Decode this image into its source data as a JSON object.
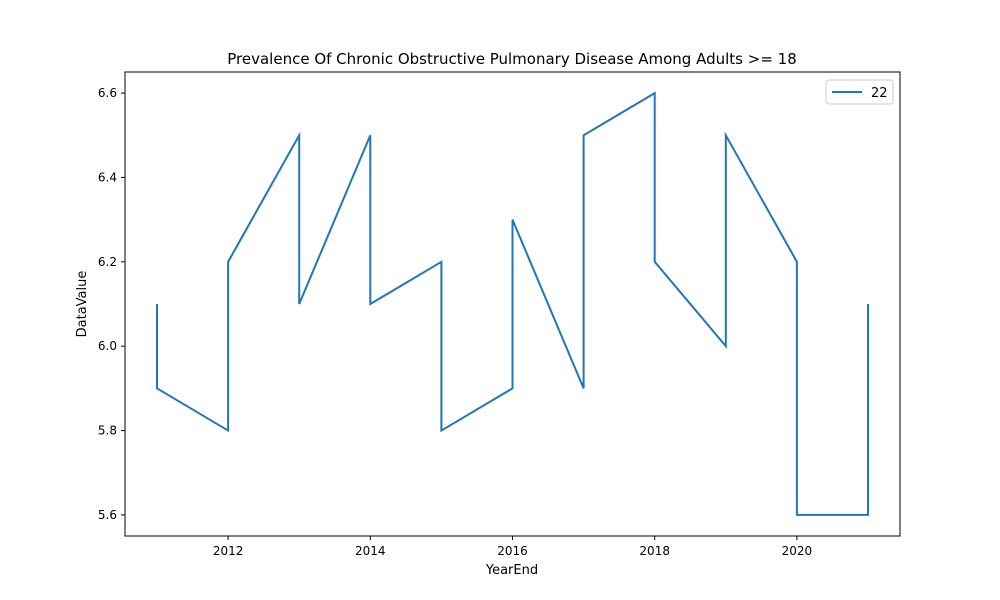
{
  "chart_data": {
    "type": "line",
    "title": "Prevalence Of Chronic Obstructive Pulmonary Disease Among Adults >= 18",
    "xlabel": "YearEnd",
    "ylabel": "DataValue",
    "xlim": [
      2010.55,
      2021.45
    ],
    "ylim": [
      5.55,
      6.65
    ],
    "xticks": [
      2012,
      2014,
      2016,
      2018,
      2020
    ],
    "yticks": [
      5.6,
      5.8,
      6.0,
      6.2,
      6.4,
      6.6
    ],
    "xtick_labels": [
      "2012",
      "2014",
      "2016",
      "2018",
      "2020"
    ],
    "ytick_labels": [
      "5.6",
      "5.8",
      "6.0",
      "6.2",
      "6.4",
      "6.6"
    ],
    "grid": false,
    "legend_position": "top-right",
    "series": [
      {
        "name": "22",
        "color": "#1f77b4",
        "x": [
          2011,
          2011,
          2012,
          2012,
          2013,
          2013,
          2014,
          2014,
          2015,
          2015,
          2016,
          2016,
          2017,
          2017,
          2018,
          2018,
          2019,
          2019,
          2020,
          2020,
          2021,
          2021
        ],
        "y": [
          6.1,
          5.9,
          5.8,
          6.2,
          6.5,
          6.1,
          6.5,
          6.1,
          6.2,
          5.8,
          5.9,
          6.3,
          5.9,
          6.5,
          6.6,
          6.2,
          6.0,
          6.5,
          6.2,
          5.6,
          5.6,
          6.1
        ]
      }
    ]
  }
}
